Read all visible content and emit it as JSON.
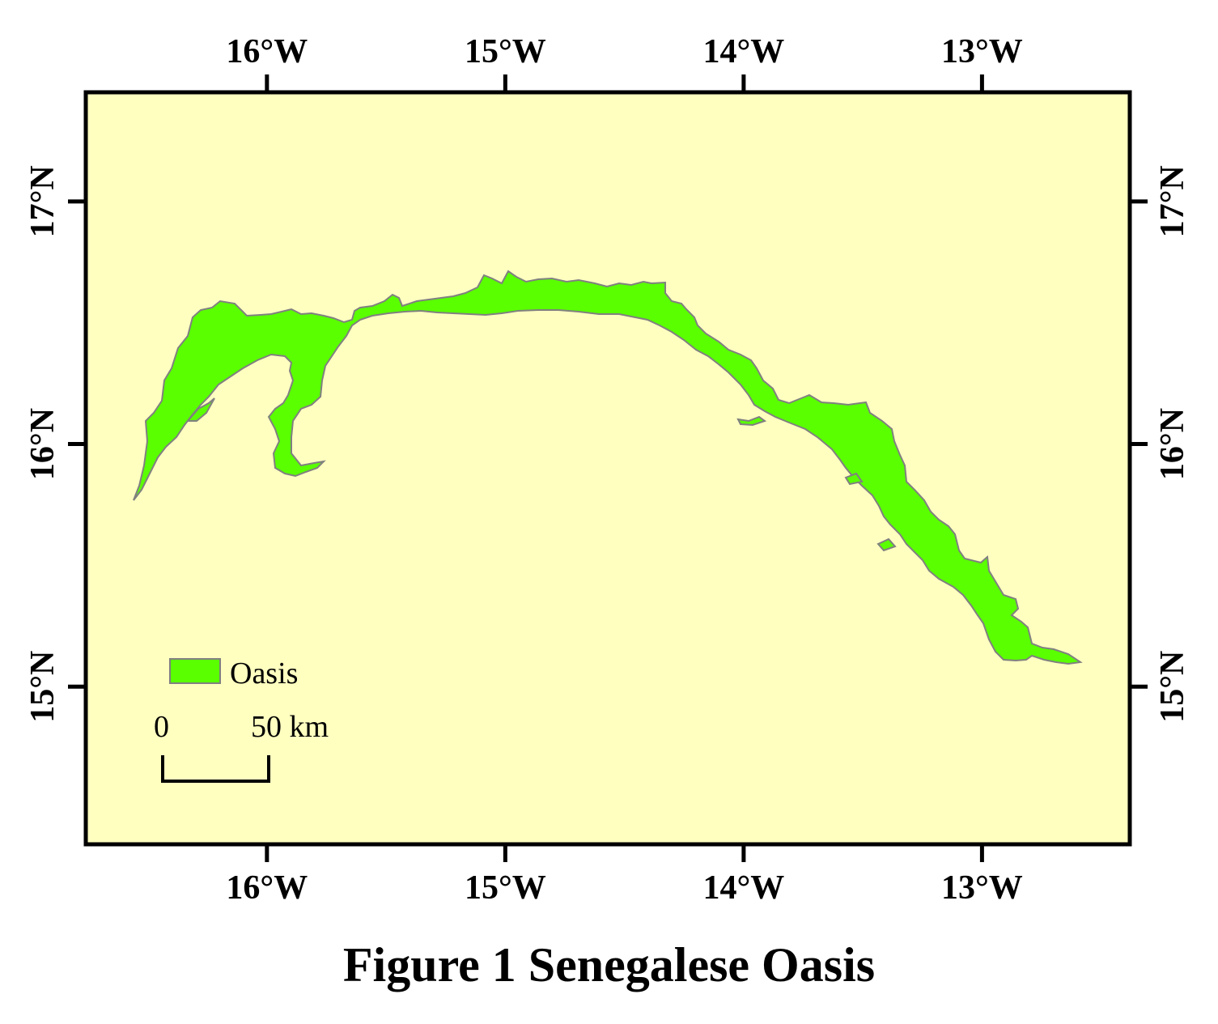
{
  "figure": {
    "caption": "Figure 1  Senegalese Oasis"
  },
  "map": {
    "background_color": "#ffffc0",
    "frame_color": "#000000",
    "longitude_ticks": [
      "16°W",
      "15°W",
      "14°W",
      "13°W"
    ],
    "longitude_values": [
      -16,
      -15,
      -14,
      -13
    ],
    "latitude_ticks": [
      "17°N",
      "16°N",
      "15°N"
    ],
    "latitude_values": [
      17,
      16,
      15
    ],
    "extent": {
      "lon_min": -16.76,
      "lon_max": -12.38,
      "lat_min": 14.35,
      "lat_max": 17.45
    }
  },
  "layers": [
    {
      "name": "Oasis",
      "fill": "#5aff00",
      "outline": "#808080"
    }
  ],
  "legend": {
    "entries": [
      {
        "label": "Oasis",
        "fill": "#5aff00",
        "outline": "#808080"
      }
    ]
  },
  "scale_bar": {
    "start_label": "0",
    "end_label": "50 km",
    "length_km": 50
  }
}
